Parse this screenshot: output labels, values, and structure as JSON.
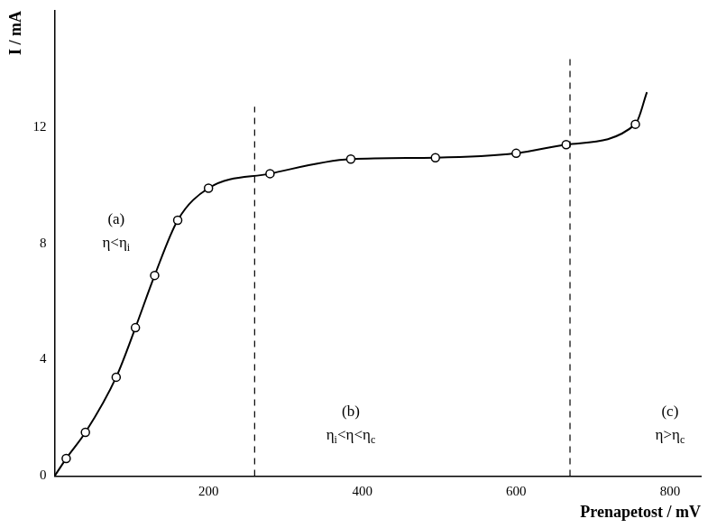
{
  "chart_data": {
    "type": "scatter",
    "x_label": "Prenapetost / mV",
    "y_label": "I / mA",
    "xlim": [
      0,
      840
    ],
    "xticks": [
      200,
      400,
      600,
      800
    ],
    "ylim": [
      0,
      16
    ],
    "yticks": [
      0,
      4,
      8,
      12
    ],
    "grid": false,
    "series": [
      {
        "type": "line",
        "color": "#000000",
        "marker": "none",
        "line_style": "solid",
        "x": [
          0,
          15,
          40,
          80,
          105,
          130,
          160,
          200,
          280,
          385,
          495,
          600,
          665,
          755,
          770
        ],
        "values": [
          0,
          0.6,
          1.5,
          3.4,
          5.1,
          6.9,
          8.8,
          9.9,
          10.4,
          10.9,
          10.95,
          11.1,
          11.4,
          12.1,
          13.2
        ]
      },
      {
        "type": "scatter",
        "color": "#000000",
        "marker": "circle",
        "x": [
          15,
          40,
          80,
          105,
          130,
          160,
          200,
          280,
          385,
          495,
          600,
          665,
          755
        ],
        "values": [
          0.6,
          1.5,
          3.4,
          5.1,
          6.9,
          8.8,
          9.9,
          10.4,
          10.9,
          10.95,
          11.1,
          11.4,
          12.1
        ]
      }
    ],
    "reference_lines": [
      {
        "x": 260,
        "y_range": [
          0,
          12.7
        ],
        "line_style": "dashed"
      },
      {
        "x": 670,
        "y_range": [
          0,
          14.4
        ],
        "line_style": "dashed"
      }
    ],
    "annotations": [
      {
        "text": "(a)",
        "x": 80,
        "y": 8.8
      },
      {
        "text": "η<ηi",
        "x": 80,
        "y": 8.0
      },
      {
        "text": "(b)",
        "x": 385,
        "y": 2.2
      },
      {
        "text": "ηi<η<ηc",
        "x": 385,
        "y": 1.4
      },
      {
        "text": "(c)",
        "x": 800,
        "y": 2.2
      },
      {
        "text": "η>ηc",
        "x": 800,
        "y": 1.4
      }
    ]
  }
}
